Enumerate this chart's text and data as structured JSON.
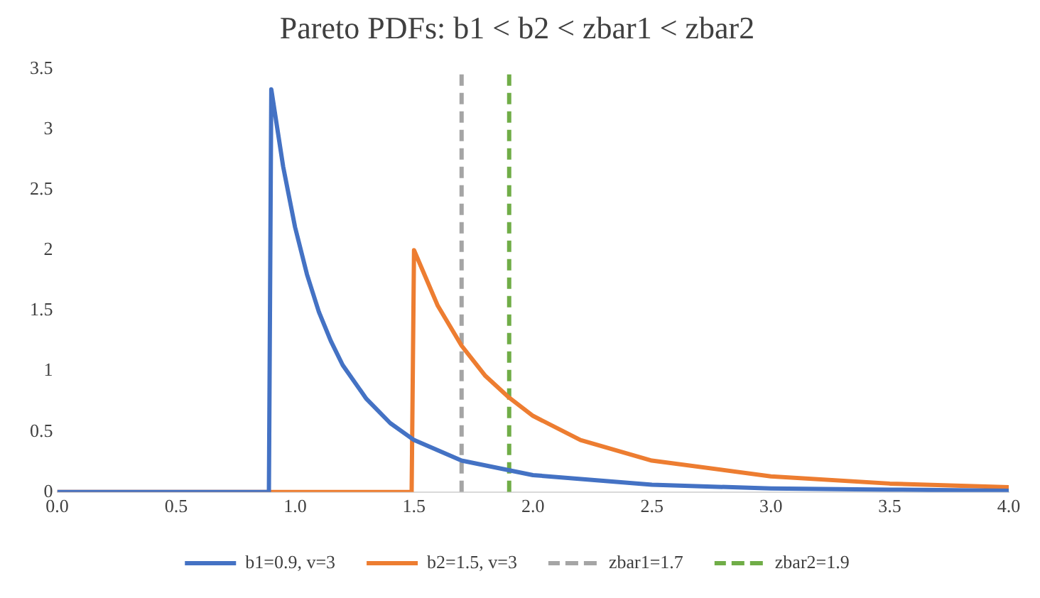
{
  "chart_data": {
    "type": "line",
    "title": "Pareto PDFs: b1 < b2 < zbar1 < zbar2",
    "xlim": [
      0,
      4
    ],
    "xticks": [
      {
        "value": 0,
        "label": "0.0"
      },
      {
        "value": 0.5,
        "label": "0.5"
      },
      {
        "value": 1,
        "label": "1.0"
      },
      {
        "value": 1.5,
        "label": "1.5"
      },
      {
        "value": 2,
        "label": "2.0"
      },
      {
        "value": 2.5,
        "label": "2.5"
      },
      {
        "value": 3,
        "label": "3.0"
      },
      {
        "value": 3.5,
        "label": "3.5"
      },
      {
        "value": 4,
        "label": "4.0"
      }
    ],
    "ylim": [
      0,
      3.5
    ],
    "yticks": [
      0,
      0.5,
      1,
      1.5,
      2,
      2.5,
      3,
      3.5
    ],
    "grid": false,
    "legend": "bottom",
    "marker": "none",
    "series": [
      {
        "name": "b1=0.9, v=3",
        "color": "#4472c4",
        "x": [
          0,
          0.89,
          0.9,
          0.95,
          1.0,
          1.05,
          1.1,
          1.15,
          1.2,
          1.3,
          1.4,
          1.5,
          1.7,
          2.0,
          2.5,
          3.0,
          3.5,
          4.0
        ],
        "values": [
          0,
          0,
          3.33,
          2.69,
          2.19,
          1.8,
          1.49,
          1.25,
          1.05,
          0.77,
          0.57,
          0.43,
          0.26,
          0.14,
          0.06,
          0.03,
          0.02,
          0.01
        ]
      },
      {
        "name": "b2=1.5, v=3",
        "color": "#ed7d31",
        "x": [
          0,
          1.49,
          1.5,
          1.6,
          1.7,
          1.8,
          1.9,
          2.0,
          2.2,
          2.5,
          3.0,
          3.5,
          4.0
        ],
        "values": [
          0,
          0,
          2,
          1.54,
          1.21,
          0.96,
          0.78,
          0.63,
          0.43,
          0.26,
          0.13,
          0.07,
          0.04
        ]
      },
      {
        "name": "zbar1=1.7",
        "color": "#a5a5a5",
        "line_style": "dashed",
        "x": [
          1.7,
          1.7
        ],
        "values": [
          0,
          3.5
        ]
      },
      {
        "name": "zbar2=1.9",
        "color": "#70ad47",
        "line_style": "dashed",
        "x": [
          1.9,
          1.9
        ],
        "values": [
          0,
          3.5
        ]
      }
    ]
  }
}
